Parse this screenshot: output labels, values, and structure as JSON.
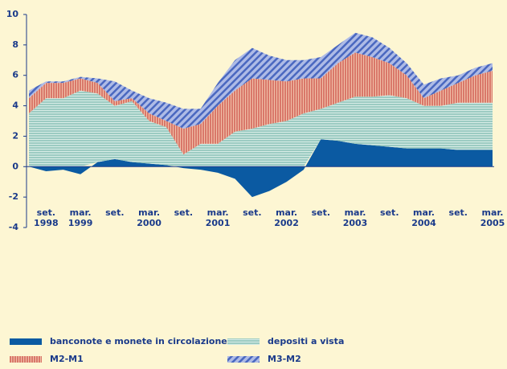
{
  "chart_data": {
    "type": "stacked_area",
    "categories": [
      null,
      "set.",
      null,
      "mar.",
      null,
      "set.",
      null,
      "mar.",
      null,
      "set.",
      null,
      "mar.",
      null,
      "set.",
      null,
      "mar.",
      null,
      "set.",
      null,
      "mar.",
      null,
      "set.",
      null,
      "mar.",
      null,
      "set.",
      null,
      "mar."
    ],
    "category_years": [
      null,
      "1998",
      null,
      "1999",
      null,
      null,
      null,
      "2000",
      null,
      null,
      null,
      "2001",
      null,
      null,
      null,
      "2002",
      null,
      null,
      null,
      "2003",
      null,
      null,
      null,
      "2004",
      null,
      null,
      null,
      "2005"
    ],
    "series": [
      {
        "name": "banconote e monete in circolazione",
        "color": "#0b5aa2",
        "pattern": "solid",
        "values": [
          0,
          -0.3,
          -0.2,
          -0.5,
          0.3,
          0.5,
          0.3,
          0.2,
          0.1,
          -0.1,
          -0.2,
          -0.4,
          -0.8,
          -2.0,
          -1.6,
          -1.0,
          -0.2,
          1.8,
          1.7,
          1.5,
          1.4,
          1.3,
          1.2,
          1.2,
          1.2,
          1.1,
          1.1,
          1.1
        ]
      },
      {
        "name": "depositi a vista",
        "color": "#9ccbc2",
        "pattern": "horizontal",
        "values": [
          3.5,
          4.5,
          4.5,
          5.0,
          4.5,
          3.5,
          4.0,
          2.8,
          2.5,
          0.8,
          1.5,
          1.5,
          2.3,
          2.5,
          2.8,
          3.0,
          3.5,
          2.0,
          2.5,
          3.1,
          3.2,
          3.4,
          3.3,
          2.8,
          2.8,
          3.1,
          3.1,
          3.1
        ]
      },
      {
        "name": "M2-M1",
        "color": "#d9786a",
        "pattern": "vertical",
        "values": [
          1.0,
          1.0,
          1.0,
          0.8,
          0.7,
          0.3,
          0.2,
          0.5,
          0.4,
          1.7,
          1.3,
          2.5,
          2.7,
          3.3,
          2.9,
          2.6,
          2.3,
          2.0,
          2.6,
          2.9,
          2.6,
          2.1,
          1.5,
          0.5,
          1.0,
          1.3,
          1.8,
          2.1
        ]
      },
      {
        "name": "M3-M2",
        "color": "#4a68c0",
        "pattern": "diagonal",
        "values": [
          0.5,
          0.1,
          0.1,
          0.1,
          0.3,
          1.3,
          0.5,
          1.0,
          1.2,
          1.3,
          1.0,
          1.5,
          2.0,
          2.0,
          1.6,
          1.4,
          1.2,
          1.4,
          1.2,
          1.3,
          1.3,
          1.0,
          0.8,
          0.9,
          0.8,
          0.5,
          0.5,
          0.5
        ]
      }
    ],
    "ylim": [
      -4,
      10
    ],
    "yticks": [
      -4,
      -2,
      0,
      2,
      4,
      6,
      8,
      10
    ]
  }
}
